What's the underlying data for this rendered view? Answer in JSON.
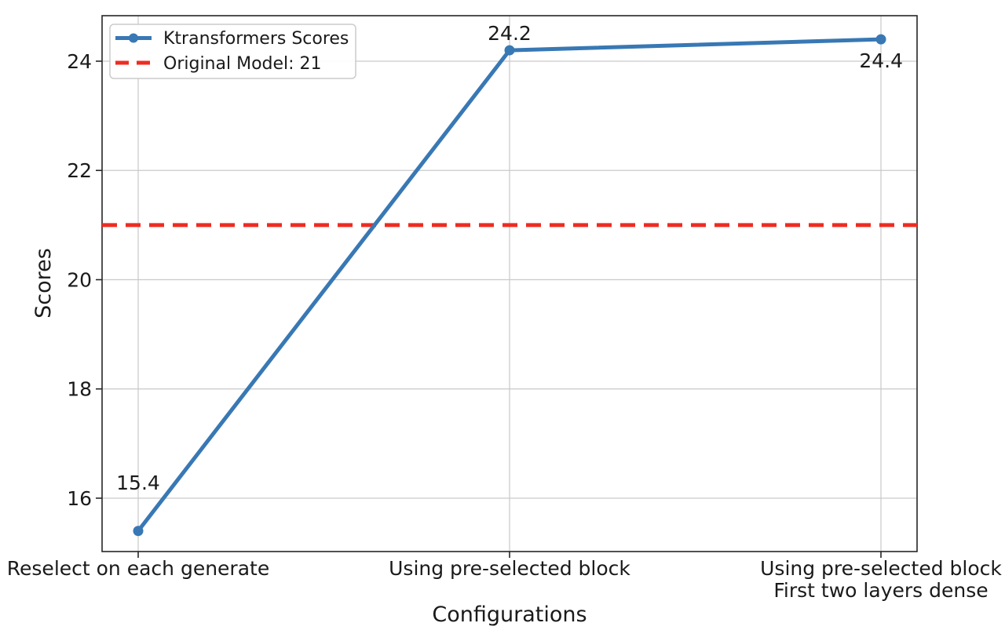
{
  "figure": {
    "background": "#ffffff",
    "grid_color": "#c9c9c9",
    "spine_color": "#262626",
    "text_color": "#1a1a1a"
  },
  "chart_data": {
    "type": "line",
    "title": "",
    "xlabel": "Configurations",
    "ylabel": "Scores",
    "categories": [
      "Reselect on each generate",
      "Using pre-selected block",
      "Using pre-selected block\nFirst two layers dense"
    ],
    "series": [
      {
        "name": "Ktransformers Scores",
        "values": [
          15.4,
          24.2,
          24.4
        ],
        "color": "#3878b4",
        "style": "solid",
        "marker": "circle"
      }
    ],
    "reference_line": {
      "label": "Original Model: 21",
      "value": 21,
      "color": "#ee2c22",
      "style": "dashed"
    },
    "data_labels": [
      "15.4",
      "24.2",
      "24.4"
    ],
    "yticks": [
      16,
      18,
      20,
      22,
      24
    ],
    "ylim": [
      15.023,
      24.833
    ],
    "grid": true,
    "legend_position": "upper left",
    "legend_entries": [
      "Ktransformers Scores",
      "Original Model: 21"
    ]
  }
}
